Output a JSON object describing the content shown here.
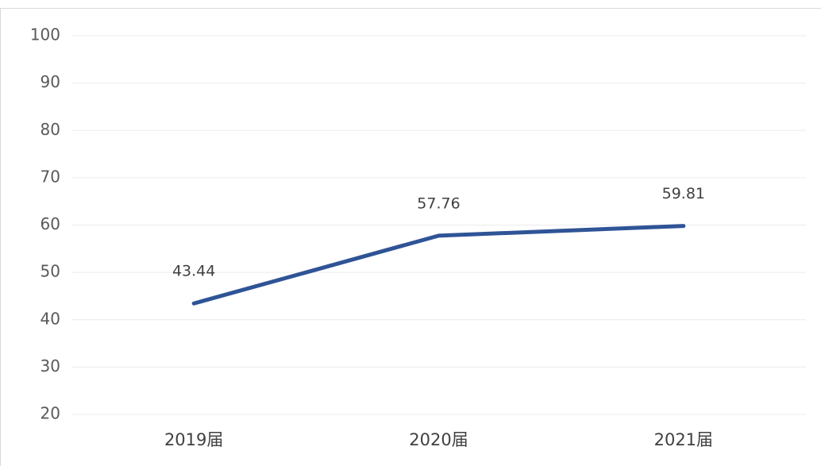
{
  "chart_data": {
    "type": "line",
    "categories": [
      "2019届",
      "2020届",
      "2021届"
    ],
    "series": [
      {
        "name": null,
        "color": "#2f5496",
        "values": [
          43.44,
          57.76,
          59.81
        ]
      }
    ],
    "ylim": [
      20,
      100
    ],
    "yticks": [
      20,
      30,
      40,
      50,
      60,
      70,
      80,
      90,
      100
    ],
    "grid": true
  }
}
